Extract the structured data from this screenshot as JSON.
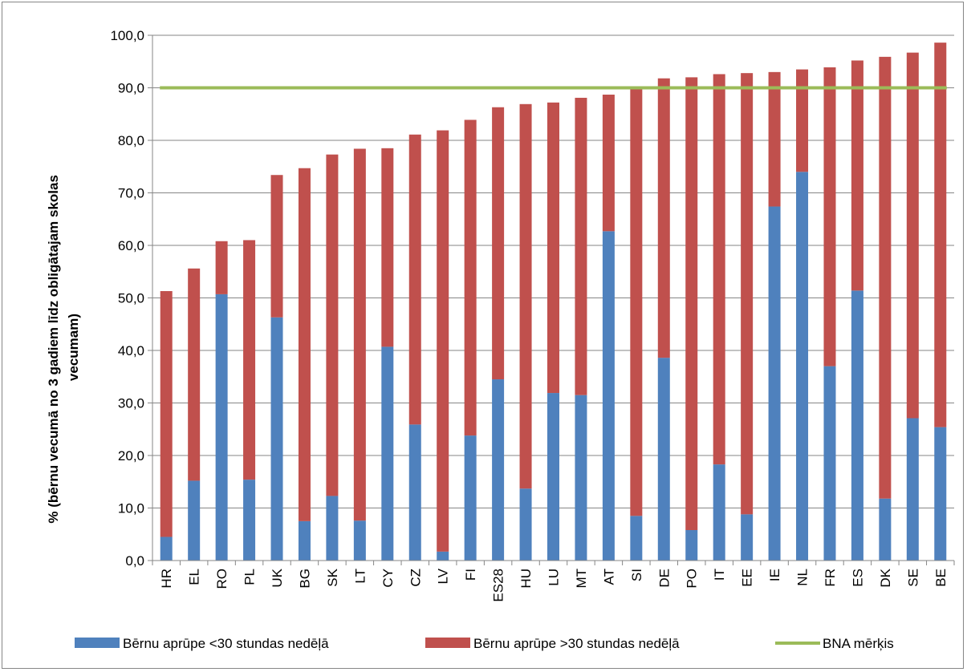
{
  "chart_data": {
    "type": "bar",
    "stacked": true,
    "categories": [
      "HR",
      "EL",
      "RO",
      "PL",
      "UK",
      "BG",
      "SK",
      "LT",
      "CY",
      "CZ",
      "LV",
      "FI",
      "ES28",
      "HU",
      "LU",
      "MT",
      "AT",
      "SI",
      "DE",
      "PO",
      "IT",
      "EE",
      "IE",
      "NL",
      "FR",
      "ES",
      "DK",
      "SE",
      "BE"
    ],
    "series": [
      {
        "name": "Bērnu aprūpe <30 stundas nedēļā",
        "color": "#4f81bd",
        "values": [
          4.5,
          15.2,
          50.7,
          15.4,
          46.3,
          7.5,
          12.3,
          7.6,
          40.7,
          25.9,
          1.7,
          23.8,
          34.5,
          13.7,
          31.9,
          31.5,
          62.7,
          8.5,
          38.6,
          5.8,
          18.3,
          8.8,
          67.4,
          74.0,
          37.0,
          51.4,
          11.8,
          27.1,
          25.4
        ]
      },
      {
        "name": "Bērnu aprūpe >30 stundas nedēļā",
        "color": "#c0504d",
        "values": [
          46.8,
          40.4,
          10.1,
          45.6,
          27.1,
          67.2,
          65.0,
          70.8,
          37.8,
          55.2,
          80.2,
          60.1,
          51.8,
          73.2,
          55.3,
          56.6,
          26.0,
          81.5,
          53.2,
          86.2,
          74.3,
          84.0,
          25.6,
          19.5,
          56.9,
          43.8,
          84.1,
          69.6,
          73.2
        ]
      }
    ],
    "target_line": {
      "name": "BNA mērķis",
      "value": 90.0,
      "color": "#9bbb59"
    },
    "ylabel": "% (bērnu vecumā no 3 gadiem līdz obligātajam skolas vecumam)",
    "ylabel_lines": [
      "% (bērnu vecumā no 3 gadiem līdz obligātajam skolas",
      "vecumam)"
    ],
    "xlabel": "",
    "ylim": [
      0,
      100
    ],
    "ytick_labels": [
      "0,0",
      "10,0",
      "20,0",
      "30,0",
      "40,0",
      "50,0",
      "60,0",
      "70,0",
      "80,0",
      "90,0",
      "100,0"
    ],
    "grid": true,
    "legend_position": "bottom",
    "gridline_color": "#868686"
  }
}
